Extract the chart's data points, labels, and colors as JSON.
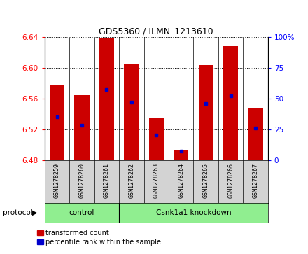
{
  "title": "GDS5360 / ILMN_1213610",
  "samples": [
    "GSM1278259",
    "GSM1278260",
    "GSM1278261",
    "GSM1278262",
    "GSM1278263",
    "GSM1278264",
    "GSM1278265",
    "GSM1278266",
    "GSM1278267"
  ],
  "bar_tops": [
    6.578,
    6.564,
    6.638,
    6.605,
    6.535,
    6.493,
    6.603,
    6.628,
    6.548
  ],
  "bar_bottoms": [
    6.48,
    6.48,
    6.48,
    6.48,
    6.48,
    6.48,
    6.48,
    6.48,
    6.48
  ],
  "percentile_ranks": [
    35,
    28,
    57,
    47,
    20,
    7,
    46,
    52,
    26
  ],
  "ylim_left": [
    6.48,
    6.64
  ],
  "ylim_right": [
    0,
    100
  ],
  "yticks_left": [
    6.48,
    6.52,
    6.56,
    6.6,
    6.64
  ],
  "yticks_right": [
    0,
    25,
    50,
    75,
    100
  ],
  "bar_color": "#cc0000",
  "dot_color": "#0000cc",
  "protocol_label": "protocol",
  "control_label": "control",
  "knockdown_label": "Csnk1a1 knockdown",
  "n_control": 3,
  "legend_items": [
    "transformed count",
    "percentile rank within the sample"
  ],
  "plot_bg": "#ffffff",
  "label_bg": "#d3d3d3",
  "proto_bg": "#90ee90"
}
